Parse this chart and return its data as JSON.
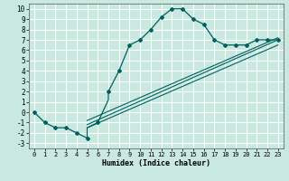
{
  "xlabel": "Humidex (Indice chaleur)",
  "xlim": [
    -0.5,
    23.5
  ],
  "ylim": [
    -3.5,
    10.5
  ],
  "xticks": [
    0,
    1,
    2,
    3,
    4,
    5,
    6,
    7,
    8,
    9,
    10,
    11,
    12,
    13,
    14,
    15,
    16,
    17,
    18,
    19,
    20,
    21,
    22,
    23
  ],
  "yticks": [
    -3,
    -2,
    -1,
    0,
    1,
    2,
    3,
    4,
    5,
    6,
    7,
    8,
    9,
    10
  ],
  "background_color": "#c8e8e0",
  "grid_color": "#ffffff",
  "line_color": "#006060",
  "main_x": [
    0,
    1,
    2,
    3,
    4,
    5,
    5,
    6,
    7,
    7,
    8,
    9,
    10,
    11,
    12,
    13,
    14,
    15,
    16,
    17,
    18,
    19,
    20,
    21,
    22,
    23
  ],
  "main_y": [
    0,
    -1,
    -1.5,
    -1.5,
    -2,
    -2.5,
    -1.5,
    -1,
    1.2,
    2,
    4,
    6.5,
    7,
    8,
    9.2,
    10,
    10,
    9,
    8.5,
    7,
    6.5,
    6.5,
    6.5,
    7,
    7,
    7
  ],
  "line1_x": [
    5,
    23
  ],
  "line1_y": [
    -1.2,
    7
  ],
  "line2_x": [
    5,
    23
  ],
  "line2_y": [
    -1.5,
    6.5
  ],
  "line3_x": [
    5,
    23
  ],
  "line3_y": [
    -0.8,
    7.2
  ],
  "marker_x": [
    0,
    1,
    2,
    3,
    4,
    5,
    6,
    7,
    8,
    9,
    10,
    11,
    12,
    13,
    14,
    15,
    16,
    17,
    18,
    19,
    20,
    21,
    22,
    23
  ],
  "marker_y": [
    0,
    -1,
    -1.5,
    -1.5,
    -2,
    -2.5,
    -1,
    2,
    4,
    6.5,
    7,
    8,
    9.2,
    10,
    10,
    9,
    8.5,
    7,
    6.5,
    6.5,
    6.5,
    7,
    7,
    7
  ]
}
